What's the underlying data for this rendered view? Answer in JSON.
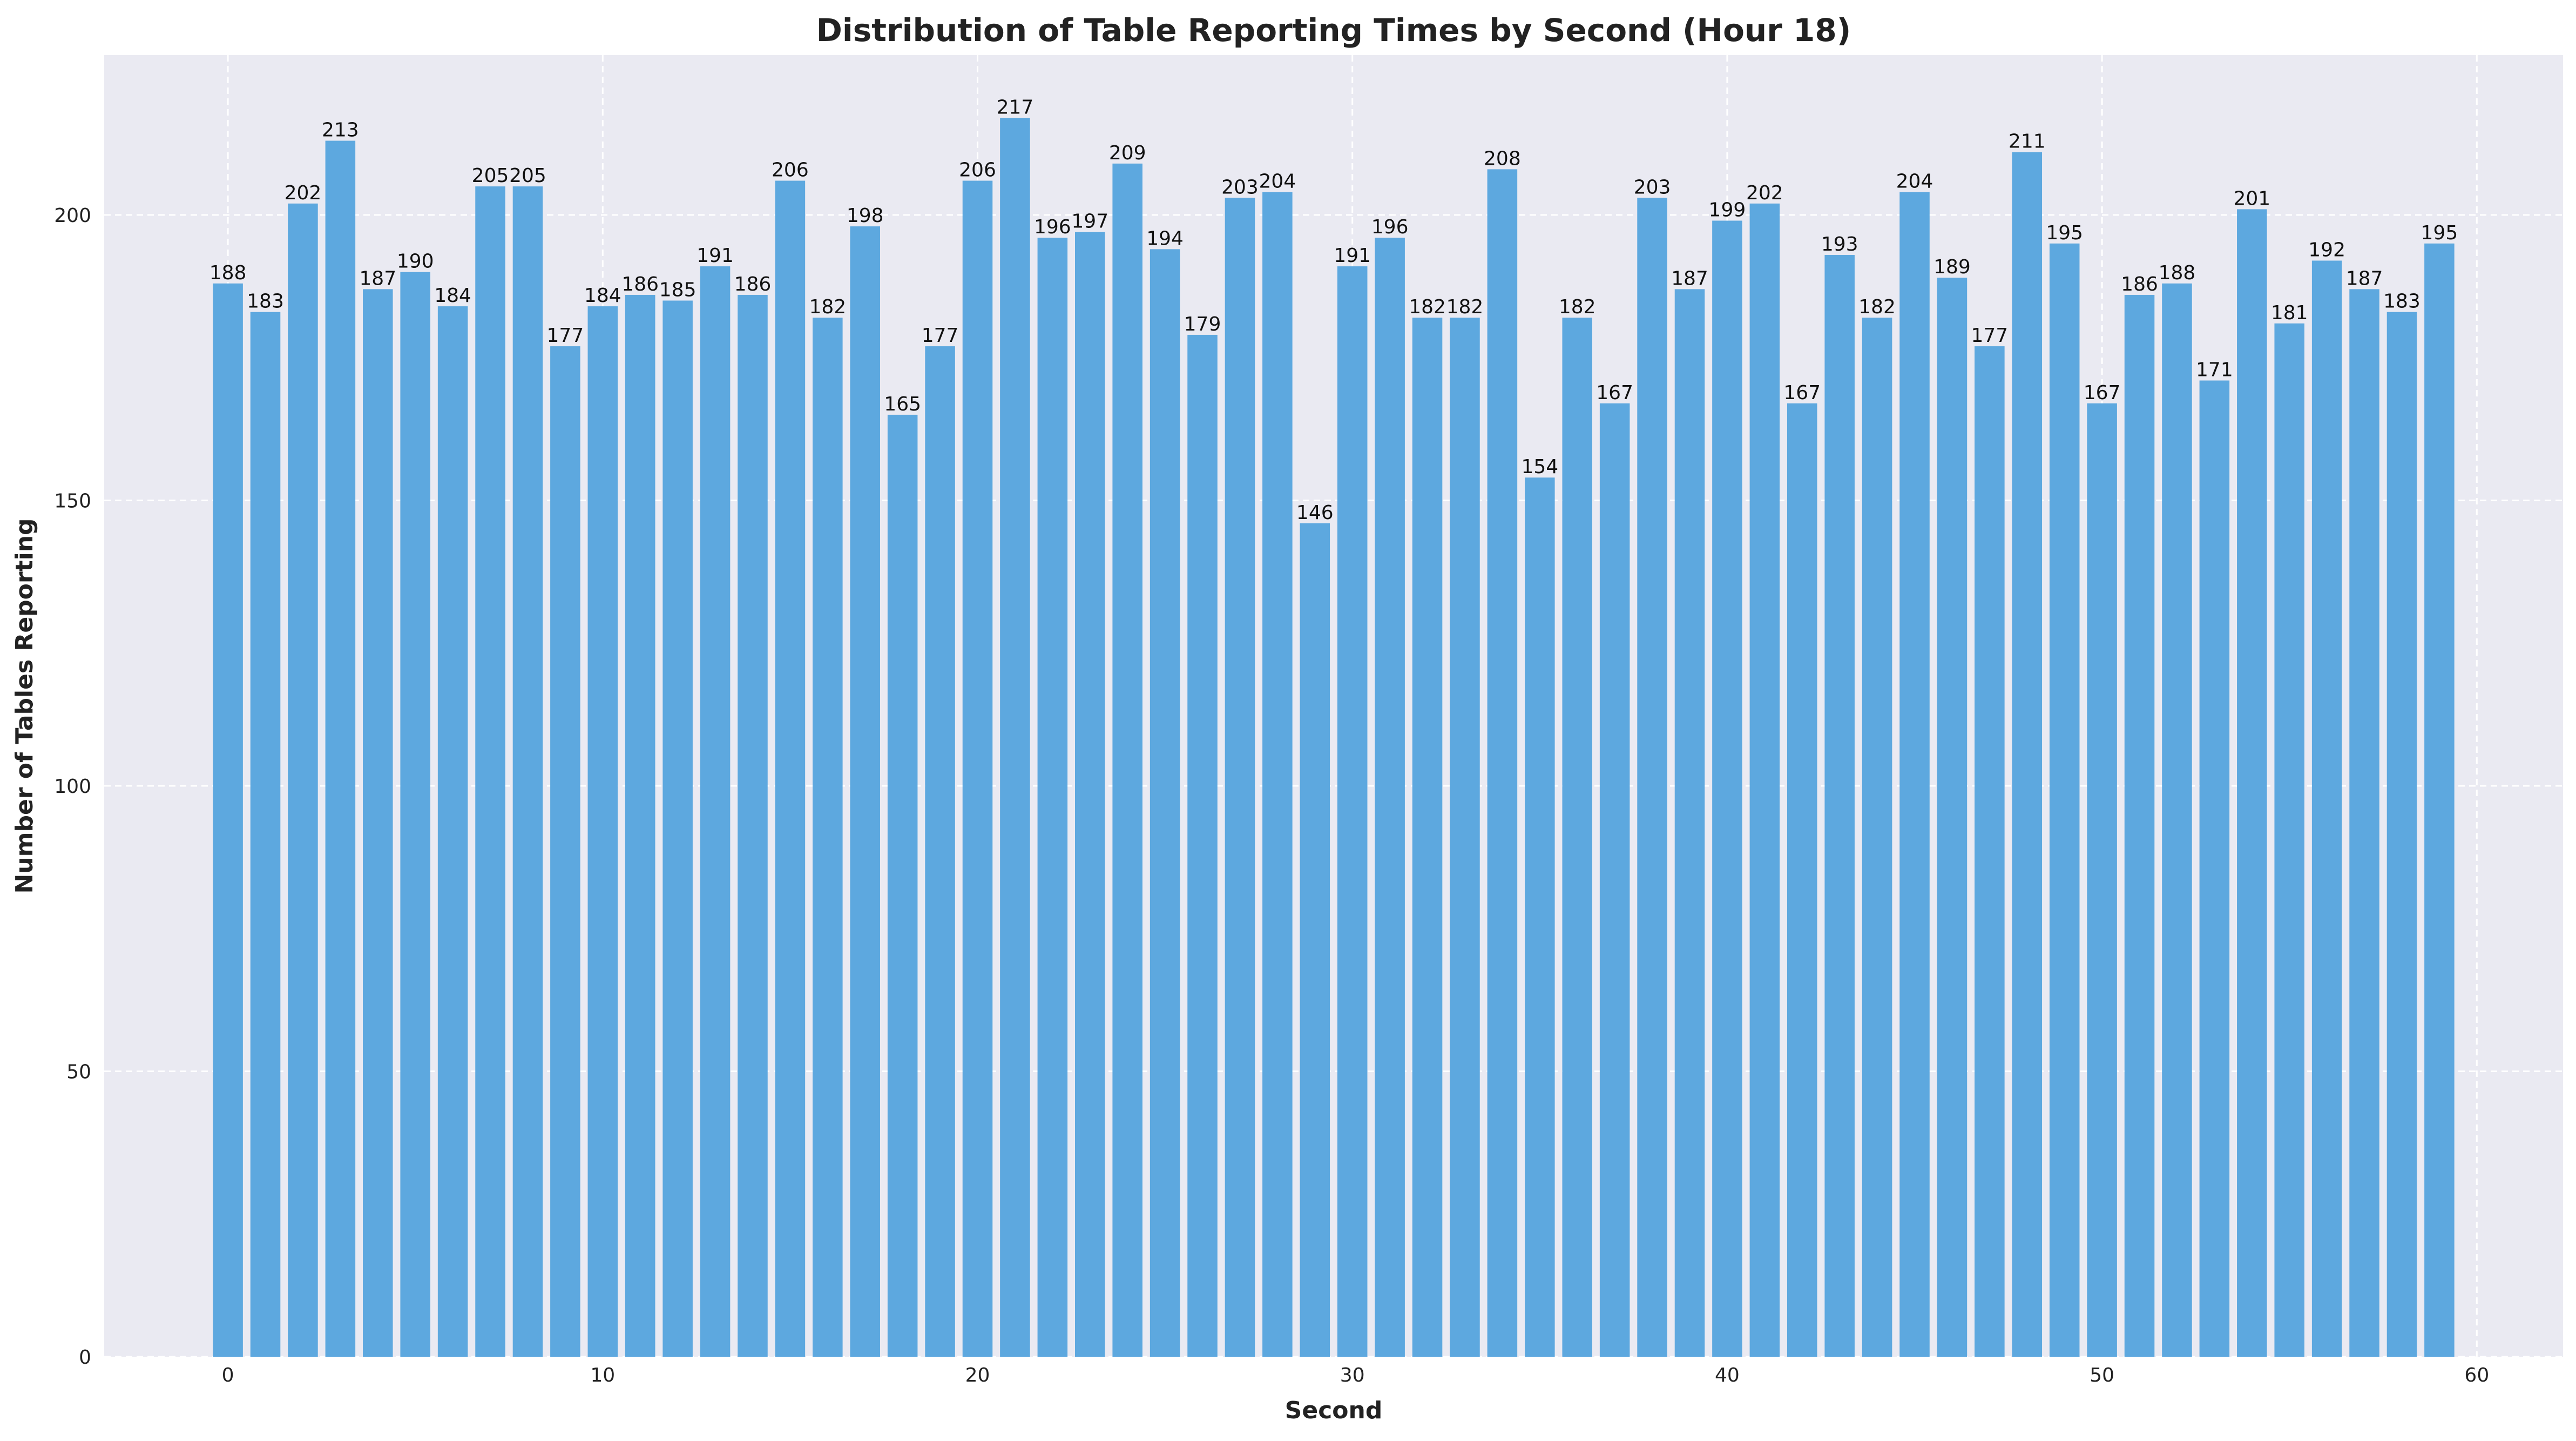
{
  "chart_data": {
    "type": "bar",
    "title": "Distribution of Table Reporting Times by Second (Hour 18)",
    "xlabel": "Second",
    "ylabel": "Number of Tables Reporting",
    "x": [
      0,
      1,
      2,
      3,
      4,
      5,
      6,
      7,
      8,
      9,
      10,
      11,
      12,
      13,
      14,
      15,
      16,
      17,
      18,
      19,
      20,
      21,
      22,
      23,
      24,
      25,
      26,
      27,
      28,
      29,
      30,
      31,
      32,
      33,
      34,
      35,
      36,
      37,
      38,
      39,
      40,
      41,
      42,
      43,
      44,
      45,
      46,
      47,
      48,
      49,
      50,
      51,
      52,
      53,
      54,
      55,
      56,
      57,
      58,
      59
    ],
    "values": [
      188,
      183,
      202,
      213,
      187,
      190,
      184,
      205,
      205,
      177,
      184,
      186,
      185,
      191,
      186,
      206,
      182,
      198,
      165,
      177,
      206,
      217,
      196,
      197,
      209,
      194,
      179,
      203,
      204,
      146,
      191,
      196,
      182,
      182,
      208,
      154,
      182,
      167,
      203,
      187,
      199,
      202,
      167,
      193,
      182,
      204,
      189,
      177,
      211,
      195,
      167,
      186,
      188,
      171,
      201,
      181,
      192,
      187,
      183,
      195
    ],
    "xlim": [
      -3.3,
      62.3
    ],
    "ylim": [
      0,
      228
    ],
    "xticks": [
      "0",
      "10",
      "20",
      "30",
      "40",
      "50",
      "60"
    ],
    "xtick_values": [
      0,
      10,
      20,
      30,
      40,
      50,
      60
    ],
    "yticks": [
      "0",
      "50",
      "100",
      "150",
      "200"
    ],
    "ytick_values": [
      0,
      50,
      100,
      150,
      200
    ],
    "grid": true,
    "legend": "none",
    "colors": {
      "bar": "#5DA8DF",
      "plot_background": "#EAEAF2",
      "grid": "#FFFFFF",
      "text": "#222222"
    }
  }
}
